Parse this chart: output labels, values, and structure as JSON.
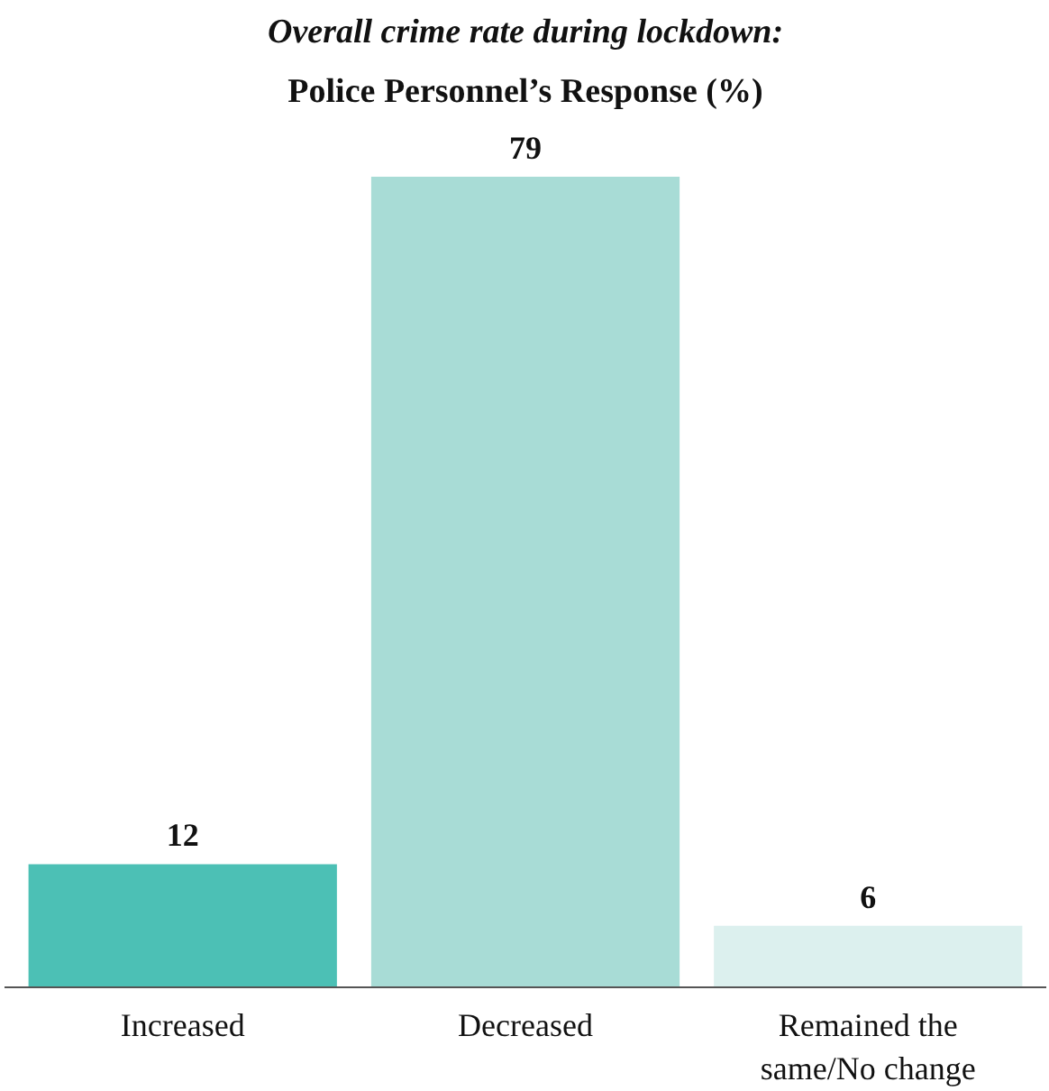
{
  "chart_data": {
    "type": "bar",
    "title": "Overall crime rate during lockdown:",
    "subtitle": "Police Personnel’s Response (%)",
    "categories": [
      "Increased",
      "Decreased",
      "Remained the same/No change"
    ],
    "values": [
      12,
      79,
      6
    ],
    "colors": [
      "#4cc0b5",
      "#a8dcd6",
      "#dcf0ee"
    ],
    "data_labels": true,
    "grid": false
  }
}
